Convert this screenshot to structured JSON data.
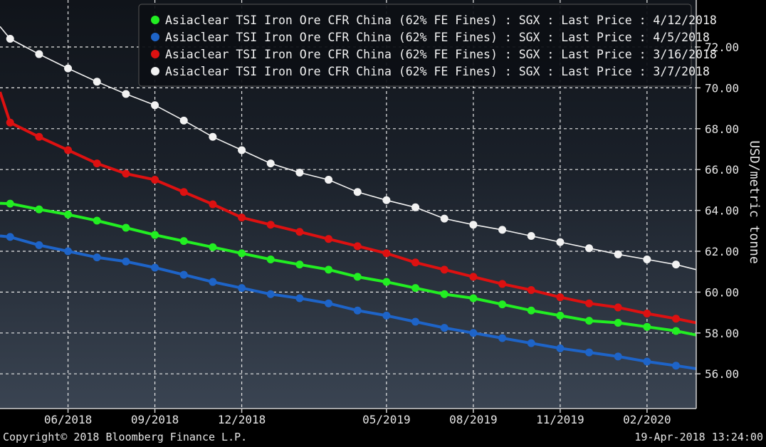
{
  "chart_data": {
    "type": "line",
    "ylabel": "USD/metric tonne",
    "ylim": [
      54.3,
      74.3
    ],
    "yticks": [
      56,
      58,
      60,
      62,
      64,
      66,
      68,
      70,
      72
    ],
    "x_ticks": [
      {
        "label": "06/2018",
        "index": 2
      },
      {
        "label": "09/2018",
        "index": 5
      },
      {
        "label": "12/2018",
        "index": 8
      },
      {
        "label": "05/2019",
        "index": 13
      },
      {
        "label": "08/2019",
        "index": 16
      },
      {
        "label": "11/2019",
        "index": 19
      },
      {
        "label": "02/2020",
        "index": 22
      }
    ],
    "x_range": [
      -0.35,
      23.7
    ],
    "series": [
      {
        "name": "Asiaclear TSI Iron Ore CFR China (62% FE Fines) : SGX : Last Price : 4/12/2018",
        "color": "#22ee22",
        "line_width": 4,
        "start_value": 64.35,
        "end_value": 57.9,
        "values": [
          64.33,
          64.05,
          63.8,
          63.5,
          63.15,
          62.8,
          62.5,
          62.2,
          61.9,
          61.6,
          61.35,
          61.1,
          60.75,
          60.5,
          60.2,
          59.9,
          59.7,
          59.4,
          59.1,
          58.85,
          58.6,
          58.5,
          58.3,
          58.1
        ]
      },
      {
        "name": "Asiaclear TSI Iron Ore CFR China (62% FE Fines) : SGX : Last Price : 4/5/2018",
        "color": "#1e64c8",
        "line_width": 4,
        "start_value": 62.75,
        "end_value": 56.25,
        "values": [
          62.7,
          62.3,
          62.0,
          61.7,
          61.5,
          61.2,
          60.85,
          60.5,
          60.2,
          59.9,
          59.7,
          59.45,
          59.1,
          58.85,
          58.55,
          58.25,
          58.0,
          57.75,
          57.5,
          57.25,
          57.05,
          56.85,
          56.6,
          56.4
        ]
      },
      {
        "name": "Asiaclear TSI Iron Ore CFR China (62% FE Fines) : SGX : Last Price : 3/16/2018",
        "color": "#dd1111",
        "line_width": 4,
        "start_value": 69.8,
        "end_value": 58.5,
        "values": [
          68.3,
          67.6,
          66.95,
          66.3,
          65.8,
          65.5,
          64.9,
          64.3,
          63.65,
          63.3,
          62.95,
          62.6,
          62.25,
          61.9,
          61.45,
          61.1,
          60.75,
          60.4,
          60.1,
          59.75,
          59.45,
          59.25,
          58.95,
          58.7
        ]
      },
      {
        "name": "Asiaclear TSI Iron Ore CFR China (62% FE Fines) : SGX : Last Price : 3/7/2018",
        "color": "#f2f2f2",
        "line_width": 1.6,
        "start_value": 73.0,
        "end_value": 61.1,
        "values": [
          72.4,
          71.65,
          70.95,
          70.3,
          69.7,
          69.15,
          68.4,
          67.6,
          66.95,
          66.3,
          65.85,
          65.5,
          64.9,
          64.5,
          64.15,
          63.6,
          63.3,
          63.05,
          62.75,
          62.45,
          62.15,
          61.85,
          61.6,
          61.35
        ]
      }
    ]
  },
  "footer": {
    "copyright": "Copyright© 2018 Bloomberg Finance L.P.",
    "timestamp": "19-Apr-2018 13:24:00"
  }
}
